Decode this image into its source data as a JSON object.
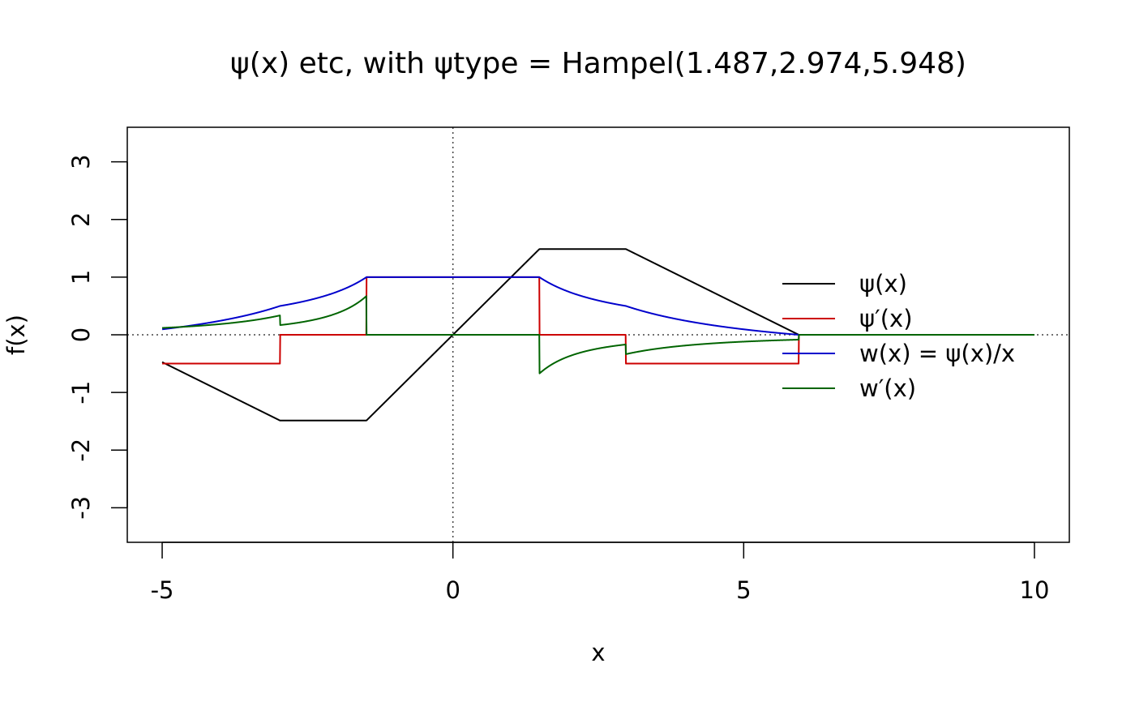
{
  "chart_data": {
    "type": "line",
    "title": "ψ(x) etc, with ψtype = Hampel(1.487,2.974,5.948)",
    "xlabel": "x",
    "ylabel": "f(x)",
    "xlim": [
      -5.6,
      10.6
    ],
    "ylim": [
      -3.6,
      3.6
    ],
    "x_ticks": [
      -5,
      0,
      5,
      10
    ],
    "x_tick_labels": [
      "-5",
      "0",
      "5",
      "10"
    ],
    "y_ticks": [
      -3,
      -2,
      -1,
      0,
      1,
      2,
      3
    ],
    "y_tick_labels": [
      "-3",
      "-2",
      "-1",
      "0",
      "1",
      "2",
      "3"
    ],
    "grid": false,
    "reference_lines": [
      {
        "orientation": "horizontal",
        "value": 0,
        "style": "dotted"
      },
      {
        "orientation": "vertical",
        "value": 0,
        "style": "dotted"
      }
    ],
    "params": {
      "a": 1.487,
      "b": 2.974,
      "r": 5.948
    },
    "x_range": [
      -5,
      10
    ],
    "legend_position": "right",
    "series": [
      {
        "name": "ψ(x)",
        "key": "psi",
        "color": "#000000"
      },
      {
        "name": "ψ′(x)",
        "key": "dpsi",
        "color": "#cc0000"
      },
      {
        "name": "w(x) = ψ(x)/x",
        "key": "wgt",
        "color": "#0000cc"
      },
      {
        "name": "w′(x)",
        "key": "dwgt",
        "color": "#006400"
      }
    ]
  }
}
